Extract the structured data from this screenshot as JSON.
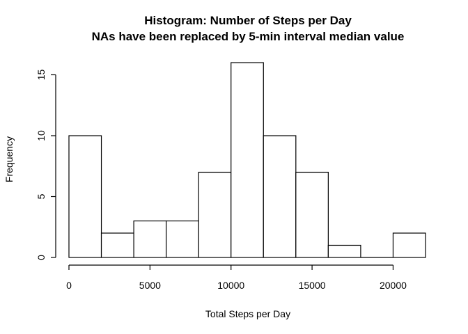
{
  "chart_data": {
    "type": "bar",
    "title": "Histogram: Number of Steps per Day",
    "subtitle": "NAs have been replaced by 5-min interval median value",
    "xlabel": "Total Steps per Day",
    "ylabel": "Frequency",
    "bin_edges": [
      0,
      2000,
      4000,
      6000,
      8000,
      10000,
      12000,
      14000,
      16000,
      18000,
      20000,
      22000
    ],
    "values": [
      10,
      2,
      3,
      3,
      7,
      16,
      10,
      7,
      1,
      0,
      2
    ],
    "xlim": [
      0,
      22000
    ],
    "ylim": [
      0,
      16
    ],
    "x_ticks": [
      0,
      5000,
      10000,
      15000,
      20000
    ],
    "x_tick_labels": [
      "0",
      "5000",
      "10000",
      "15000",
      "20000"
    ],
    "y_ticks": [
      0,
      5,
      10,
      15
    ],
    "y_tick_labels": [
      "0",
      "5",
      "10",
      "15"
    ],
    "grid": false,
    "legend": "none",
    "bar_fill": "#ffffff",
    "bar_stroke": "#000000"
  }
}
